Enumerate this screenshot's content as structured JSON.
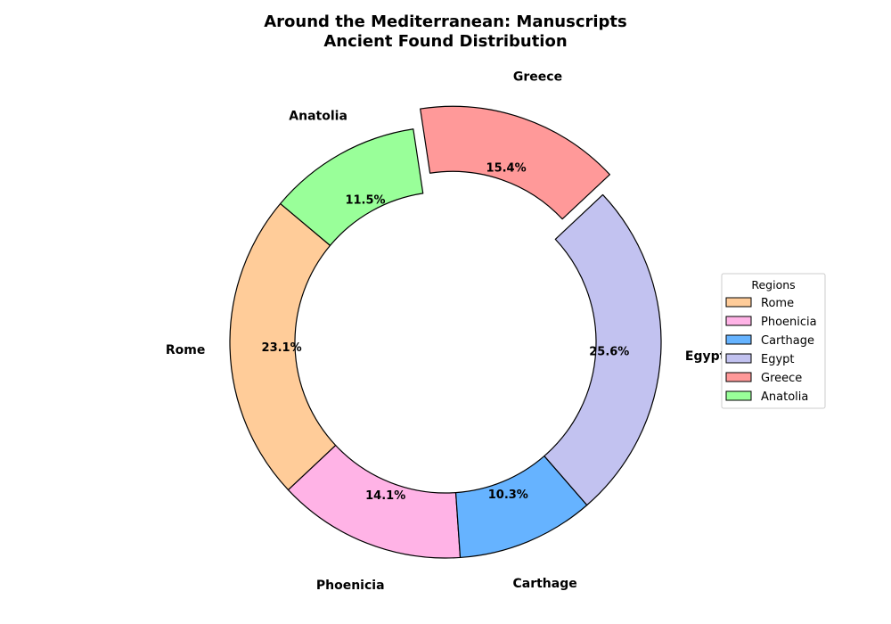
{
  "chart_data": {
    "type": "pie",
    "style": "donut",
    "title_lines": [
      "Around the Mediterranean: Manuscripts",
      "Ancient Found Distribution"
    ],
    "start_angle_deg": 140,
    "direction": "counterclockwise",
    "slices": [
      {
        "label": "Rome",
        "percent": 23.1,
        "pct_label": "23.1%",
        "color": "#ffcc99",
        "explode": false
      },
      {
        "label": "Phoenicia",
        "percent": 14.1,
        "pct_label": "14.1%",
        "color": "#ffb3e6",
        "explode": false
      },
      {
        "label": "Carthage",
        "percent": 10.3,
        "pct_label": "10.3%",
        "color": "#66b3ff",
        "explode": false
      },
      {
        "label": "Egypt",
        "percent": 25.6,
        "pct_label": "25.6%",
        "color": "#c2c2f0",
        "explode": false
      },
      {
        "label": "Greece",
        "percent": 15.4,
        "pct_label": "15.4%",
        "color": "#ff9999",
        "explode": true
      },
      {
        "label": "Anatolia",
        "percent": 11.5,
        "pct_label": "11.5%",
        "color": "#99ff99",
        "explode": false
      }
    ],
    "legend": {
      "title": "Regions",
      "placement": "center-right"
    }
  }
}
